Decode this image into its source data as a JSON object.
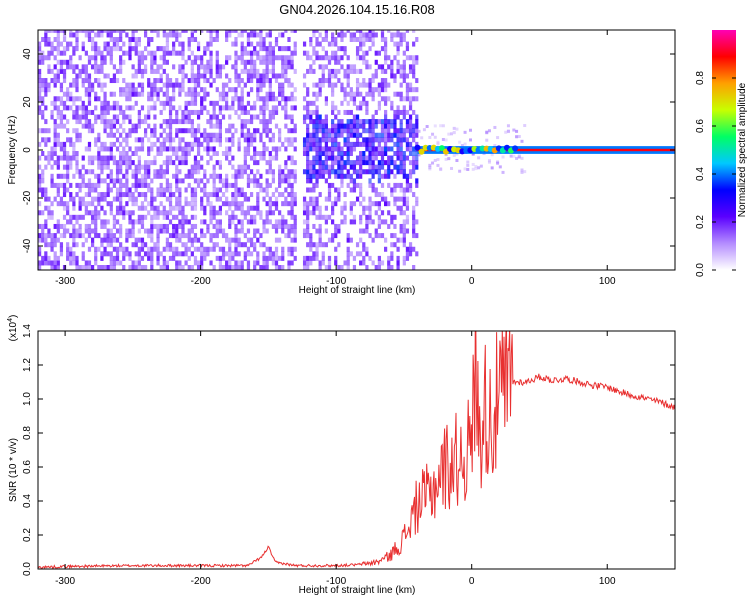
{
  "title": "GN04.2026.104.15.16.R08",
  "chart_data": [
    {
      "type": "heatmap",
      "xlabel": "Height of straight line (km)",
      "ylabel": "Frequency (Hz)",
      "xlim": [
        -320,
        150
      ],
      "ylim": [
        -50,
        50
      ],
      "x_ticks": [
        -300,
        -200,
        -100,
        0,
        100
      ],
      "y_ticks": [
        -40,
        -20,
        0,
        20,
        40
      ],
      "colorbar": {
        "label": "Normalized spectral amplitude",
        "range": [
          0.0,
          1.0
        ],
        "ticks": [
          "0.0",
          "0.2",
          "0.4",
          "0.6",
          "0.8"
        ],
        "tick_values": [
          0.0,
          0.2,
          0.4,
          0.6,
          0.8
        ],
        "colors": [
          "#ffffff",
          "#b48cff",
          "#5a00ff",
          "#0000ff",
          "#00c8ff",
          "#00ff64",
          "#c8ff00",
          "#ffa000",
          "#ff0000",
          "#ff00b4"
        ]
      },
      "regions": [
        {
          "name": "broadband noise",
          "x_range": [
            -320,
            -40
          ],
          "freq_range": [
            -50,
            50
          ],
          "amplitude": 0.15
        },
        {
          "name": "gap",
          "x_range": [
            -130,
            -126
          ],
          "freq_range": [
            -50,
            50
          ],
          "amplitude": 0.02
        },
        {
          "name": "enhanced band",
          "x_range": [
            -130,
            -40
          ],
          "freq_range": [
            -10,
            16
          ],
          "amplitude": 0.2
        },
        {
          "name": "carrier line",
          "x_range": [
            -40,
            150
          ],
          "freq_range": [
            -1,
            1
          ],
          "amplitude": 0.9
        }
      ]
    },
    {
      "type": "line",
      "xlabel": "Height of straight line (km)",
      "ylabel": "SNR (10 * v/v)",
      "y_scale_label": "(x10",
      "y_scale_exp": "4",
      "xlim": [
        -320,
        150
      ],
      "ylim": [
        0.0,
        1.4
      ],
      "x_ticks": [
        -300,
        -200,
        -100,
        0,
        100
      ],
      "y_ticks": [
        "0.0",
        "0.2",
        "0.4",
        "0.6",
        "0.8",
        "1.0",
        "1.2",
        "1.4"
      ],
      "y_tick_values": [
        0.0,
        0.2,
        0.4,
        0.6,
        0.8,
        1.0,
        1.2,
        1.4
      ],
      "series": [
        {
          "color": "#e83030",
          "x": [
            -320,
            -300,
            -250,
            -200,
            -165,
            -155,
            -150,
            -145,
            -130,
            -100,
            -85,
            -70,
            -60,
            -50,
            -40,
            -30,
            -20,
            -10,
            0,
            3,
            5,
            10,
            15,
            20,
            30,
            40,
            50,
            60,
            70,
            80,
            90,
            100,
            110,
            120,
            130,
            140,
            150
          ],
          "y": [
            0.01,
            0.015,
            0.02,
            0.02,
            0.02,
            0.07,
            0.13,
            0.04,
            0.02,
            0.02,
            0.025,
            0.04,
            0.08,
            0.18,
            0.38,
            0.45,
            0.6,
            0.65,
            0.72,
            1.32,
            0.8,
            0.95,
            0.88,
            1.0,
            1.1,
            1.1,
            1.13,
            1.11,
            1.12,
            1.1,
            1.08,
            1.07,
            1.04,
            1.02,
            1.0,
            0.98,
            0.95
          ]
        }
      ]
    }
  ]
}
